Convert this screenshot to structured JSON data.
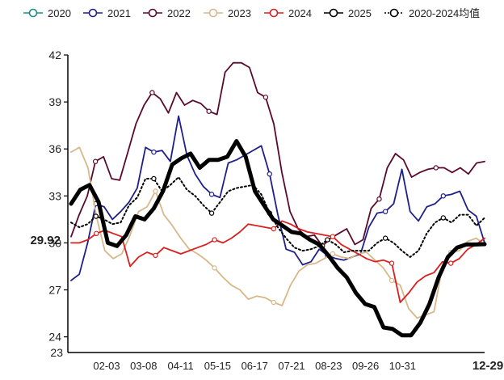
{
  "chart_data": {
    "type": "line",
    "title": "",
    "xlabel": "",
    "ylabel": "",
    "ylim": [
      23,
      42
    ],
    "y_ticks": [
      24,
      27,
      30,
      33,
      36,
      39,
      42
    ],
    "y_tick_labels": [
      "24",
      "27",
      "30",
      "33",
      "36",
      "39",
      "42"
    ],
    "y_min_label": "23",
    "current_value_label": "29.92",
    "x_tick_labels": [
      "02-03",
      "03-08",
      "04-11",
      "05-15",
      "06-17",
      "07-21",
      "08-23",
      "09-26",
      "10-31"
    ],
    "x_end_label": "12-29",
    "n_points": 46,
    "series": [
      {
        "name": "2020",
        "color": "#1a8c8c",
        "values": []
      },
      {
        "name": "2021",
        "color": "#1f1f8a",
        "values": [
          27.6,
          28,
          30,
          32.5,
          32.3,
          31.5,
          32,
          32.6,
          33.5,
          36.1,
          35.8,
          35.9,
          35.2,
          38.1,
          35.6,
          34.4,
          33.6,
          33.1,
          32.9,
          35.1,
          35.3,
          35.6,
          35.9,
          36.2,
          34.4,
          31.8,
          29.6,
          29.4,
          28.6,
          28.8,
          29.6,
          29.2,
          29.0,
          28.9,
          29.1,
          29.3,
          31.0,
          31.9,
          32.0,
          32.5,
          34.7,
          32.0,
          31.4,
          32.3,
          32.5,
          33.0,
          33.1,
          33.3,
          32.1,
          31.7,
          30.0
        ]
      },
      {
        "name": "2022",
        "color": "#5a0a2e",
        "values": [
          30.4,
          31.8,
          33.0,
          35.2,
          35.5,
          34.1,
          34.0,
          35.8,
          37.6,
          38.8,
          39.6,
          39.2,
          38.3,
          39.6,
          38.8,
          39.1,
          38.9,
          38.4,
          38.2,
          40.9,
          41.5,
          41.5,
          41.2,
          39.6,
          39.3,
          37.6,
          34.5,
          32.0,
          30.9,
          30.4,
          30.5,
          29.8,
          30.3,
          30.6,
          30.9,
          29.9,
          30.2,
          32.2,
          32.8,
          34.8,
          35.7,
          35.3,
          34.2,
          34.5,
          34.7,
          34.8,
          34.8,
          34.5,
          34.8,
          34.4,
          35.1,
          35.2
        ]
      },
      {
        "name": "2023",
        "color": "#d8b88a",
        "values": [
          35.8,
          36.1,
          34.8,
          31.7,
          29.5,
          29.0,
          29.3,
          30.5,
          32.0,
          32.3,
          33.3,
          31.8,
          31.1,
          30.3,
          29.6,
          29.3,
          28.9,
          28.4,
          27.8,
          27.3,
          27.0,
          26.4,
          26.6,
          26.5,
          26.2,
          26.0,
          27.3,
          28.2,
          28.6,
          28.7,
          29.0,
          29.3,
          29.1,
          29.0,
          29.3,
          29.4,
          28.9,
          28.4,
          27.6,
          27.3,
          25.8,
          25.2,
          25.4,
          25.6,
          28.5,
          29.4,
          29.5,
          30.1,
          30.3,
          29.9
        ]
      },
      {
        "name": "2024",
        "color": "#d9201f",
        "values": [
          30.0,
          30.0,
          30.2,
          30.6,
          30.8,
          30.6,
          30.4,
          28.5,
          29.1,
          29.4,
          29.2,
          29.7,
          29.5,
          29.3,
          29.5,
          29.7,
          29.9,
          30.2,
          30.0,
          30.3,
          30.7,
          31.2,
          31.1,
          31.0,
          30.9,
          31.4,
          31.2,
          30.9,
          30.7,
          30.6,
          30.5,
          30.4,
          29.9,
          29.6,
          29.3,
          29.0,
          28.8,
          28.9,
          28.7,
          26.2,
          26.8,
          27.5,
          27.9,
          28.1,
          28.8,
          28.7,
          29.0,
          29.6,
          29.9,
          30.3
        ]
      },
      {
        "name": "2025",
        "color": "#000000",
        "values": [
          32.5,
          33.4,
          33.7,
          32.6,
          30.0,
          29.8,
          30.5,
          31.7,
          31.5,
          32.2,
          33.3,
          35.0,
          35.4,
          35.7,
          34.8,
          35.3,
          35.3,
          35.5,
          36.5,
          35.5,
          33.3,
          32.4,
          31.5,
          31.1,
          30.7,
          30.6,
          30.2,
          29.9,
          29.2,
          28.4,
          27.8,
          26.8,
          26.1,
          25.9,
          24.6,
          24.5,
          24.1,
          24.1,
          24.9,
          26.1,
          27.8,
          29.1,
          29.7,
          29.9,
          29.9,
          29.92
        ]
      },
      {
        "name": "2020-2024均值",
        "color": "#000000",
        "values": [
          31.3,
          31.0,
          31.2,
          31.7,
          31.5,
          31.2,
          31.3,
          32.4,
          32.9,
          34.1,
          34.1,
          33.3,
          33.7,
          34.2,
          33.4,
          33.0,
          32.4,
          31.9,
          32.6,
          33.3,
          33.5,
          33.6,
          33.7,
          33.1,
          31.9,
          31.0,
          30.3,
          29.7,
          29.5,
          29.6,
          29.8,
          30.2,
          29.9,
          29.4,
          29.5,
          29.5,
          29.5,
          30.0,
          30.3,
          30.0,
          29.5,
          29.1,
          29.5,
          30.6,
          31.3,
          31.6,
          31.3,
          31.8,
          31.8,
          31.1,
          31.6
        ]
      }
    ]
  }
}
